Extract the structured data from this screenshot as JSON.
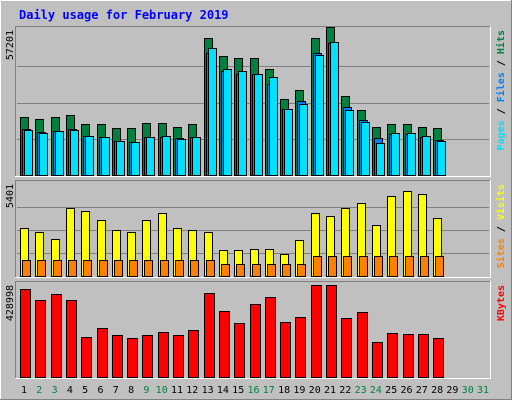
{
  "title": "Daily usage for February 2019",
  "colors": {
    "hits": "#008040",
    "files": "#0080ff",
    "pages": "#00e0ff",
    "visits": "#ffff00",
    "sites": "#ff8000",
    "kbytes": "#ff0000",
    "weekend_label": "#008040",
    "title": "#0000ff"
  },
  "chart_data": [
    {
      "type": "bar",
      "panel": "hits-files-pages",
      "ymax_label": "57201",
      "ymax": 57201,
      "grid": true,
      "right_label_parts": [
        {
          "text": "Pages",
          "color": "#00e0ff"
        },
        {
          "text": " / ",
          "color": "#000000"
        },
        {
          "text": "Files",
          "color": "#0080ff"
        },
        {
          "text": " / ",
          "color": "#000000"
        },
        {
          "text": "Hits",
          "color": "#008040"
        }
      ],
      "categories": [
        1,
        2,
        3,
        4,
        5,
        6,
        7,
        8,
        9,
        10,
        11,
        12,
        13,
        14,
        15,
        16,
        17,
        18,
        19,
        20,
        21,
        22,
        23,
        24,
        25,
        26,
        27,
        28
      ],
      "series": [
        {
          "name": "Hits",
          "values": [
            23000,
            22000,
            23000,
            23500,
            20000,
            20000,
            18500,
            18500,
            20500,
            20500,
            19000,
            20000,
            54000,
            47000,
            46000,
            46000,
            42000,
            30000,
            33500,
            54000,
            58500,
            31000,
            25500,
            19000,
            20000,
            20000,
            19000,
            18500
          ]
        },
        {
          "name": "Files",
          "values": [
            18000,
            17000,
            17500,
            18000,
            15500,
            15000,
            13500,
            13000,
            15000,
            15000,
            14500,
            15000,
            48000,
            41000,
            40000,
            40000,
            36000,
            26000,
            29000,
            48000,
            52000,
            27000,
            21500,
            14500,
            16000,
            16000,
            15000,
            14000
          ]
        },
        {
          "name": "Pages",
          "values": [
            17600,
            16500,
            17200,
            17800,
            15200,
            15000,
            13500,
            13000,
            15000,
            15200,
            14200,
            14800,
            50000,
            42000,
            41000,
            40000,
            38500,
            26000,
            28000,
            47500,
            52500,
            25500,
            21000,
            12500,
            16600,
            16600,
            15400,
            13600
          ]
        }
      ]
    },
    {
      "type": "bar",
      "panel": "visits-sites",
      "ymax_label": "5401",
      "ymax": 5401,
      "grid": true,
      "right_label_parts": [
        {
          "text": "Sites",
          "color": "#ff8000"
        },
        {
          "text": " / ",
          "color": "#000000"
        },
        {
          "text": "Visits",
          "color": "#ffff00"
        }
      ],
      "categories": [
        1,
        2,
        3,
        4,
        5,
        6,
        7,
        8,
        9,
        10,
        11,
        12,
        13,
        14,
        15,
        16,
        17,
        18,
        19,
        20,
        21,
        22,
        23,
        24,
        25,
        26,
        27,
        28
      ],
      "series": [
        {
          "name": "Visits",
          "values": [
            2800,
            2600,
            2200,
            4000,
            3800,
            3300,
            2700,
            2600,
            3300,
            3700,
            2800,
            2700,
            2600,
            1500,
            1500,
            1600,
            1600,
            1300,
            2100,
            3700,
            3500,
            4000,
            4300,
            3000,
            4700,
            5000,
            4800,
            3400
          ]
        },
        {
          "name": "Sites",
          "values": [
            940,
            940,
            940,
            940,
            940,
            940,
            940,
            940,
            940,
            940,
            940,
            940,
            940,
            680,
            680,
            680,
            680,
            680,
            680,
            1150,
            1150,
            1150,
            1150,
            1150,
            1150,
            1150,
            1150,
            1150
          ]
        }
      ]
    },
    {
      "type": "bar",
      "panel": "kbytes",
      "ymax_label": "428998",
      "ymax": 428998,
      "grid": false,
      "right_label_parts": [
        {
          "text": "KBytes",
          "color": "#ff0000"
        }
      ],
      "categories": [
        1,
        2,
        3,
        4,
        5,
        6,
        7,
        8,
        9,
        10,
        11,
        12,
        13,
        14,
        15,
        16,
        17,
        18,
        19,
        20,
        21,
        22,
        23,
        24,
        25,
        26,
        27,
        28
      ],
      "series": [
        {
          "name": "KBytes",
          "values": [
            410000,
            360000,
            385000,
            360000,
            185000,
            230000,
            195000,
            180000,
            195000,
            210000,
            195000,
            220000,
            390000,
            310000,
            250000,
            340000,
            375000,
            255000,
            280000,
            430000,
            430000,
            275000,
            305000,
            165000,
            205000,
            200000,
            200000,
            180000
          ]
        }
      ]
    }
  ],
  "x_axis": {
    "labels": [
      "1",
      "2",
      "3",
      "4",
      "5",
      "6",
      "7",
      "8",
      "9",
      "10",
      "11",
      "12",
      "13",
      "14",
      "15",
      "16",
      "17",
      "18",
      "19",
      "20",
      "21",
      "22",
      "23",
      "24",
      "25",
      "26",
      "27",
      "28",
      "29",
      "30",
      "31"
    ],
    "weekend_days": [
      2,
      3,
      9,
      10,
      16,
      17,
      23,
      24,
      30,
      31
    ]
  }
}
